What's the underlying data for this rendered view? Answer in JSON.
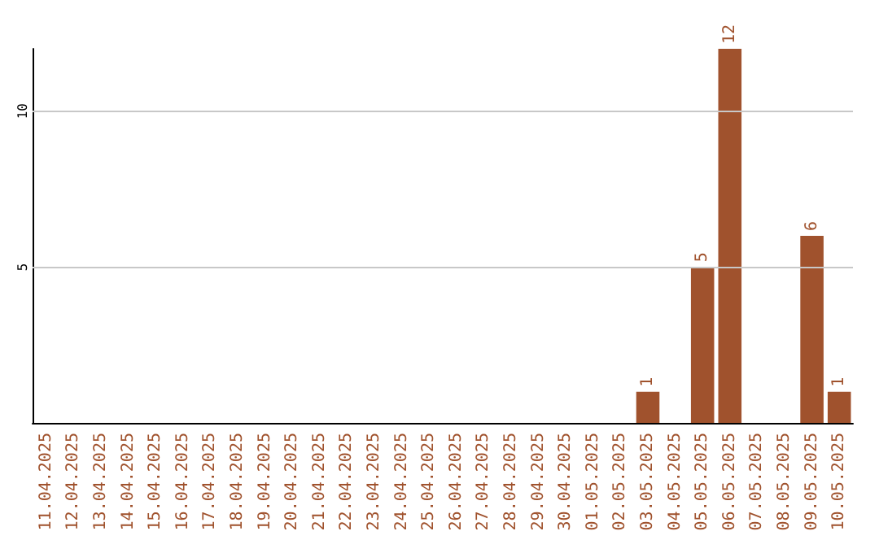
{
  "chart_data": {
    "type": "bar",
    "categories": [
      "11.04.2025",
      "12.04.2025",
      "13.04.2025",
      "14.04.2025",
      "15.04.2025",
      "16.04.2025",
      "17.04.2025",
      "18.04.2025",
      "19.04.2025",
      "20.04.2025",
      "21.04.2025",
      "22.04.2025",
      "23.04.2025",
      "24.04.2025",
      "25.04.2025",
      "26.04.2025",
      "27.04.2025",
      "28.04.2025",
      "29.04.2025",
      "30.04.2025",
      "01.05.2025",
      "02.05.2025",
      "03.05.2025",
      "04.05.2025",
      "05.05.2025",
      "06.05.2025",
      "07.05.2025",
      "08.05.2025",
      "09.05.2025",
      "10.05.2025"
    ],
    "values": [
      0,
      0,
      0,
      0,
      0,
      0,
      0,
      0,
      0,
      0,
      0,
      0,
      0,
      0,
      0,
      0,
      0,
      0,
      0,
      0,
      0,
      0,
      1,
      0,
      5,
      12,
      0,
      0,
      6,
      1
    ],
    "value_labels": [
      null,
      null,
      null,
      null,
      null,
      null,
      null,
      null,
      null,
      null,
      null,
      null,
      null,
      null,
      null,
      null,
      null,
      null,
      null,
      null,
      null,
      null,
      "1",
      null,
      "5",
      "12",
      null,
      null,
      "6",
      "1"
    ],
    "color": "#a0522d",
    "ylim": [
      0,
      12
    ],
    "yticks": [
      5,
      10
    ],
    "grid": "y"
  }
}
